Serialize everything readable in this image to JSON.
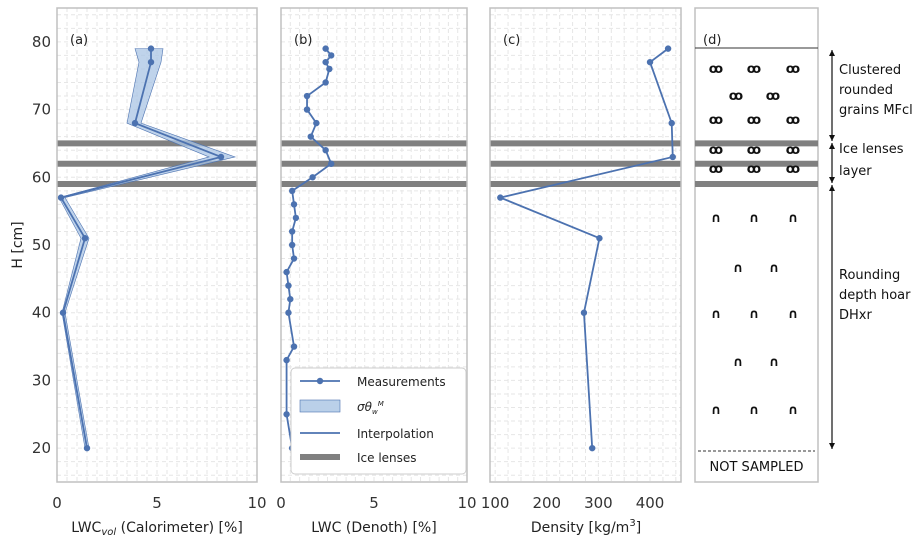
{
  "chart_data": [
    {
      "panel": "(a)",
      "type": "line",
      "xlabel_parts": [
        "LWC",
        "vol",
        " (Calorimeter) [%]"
      ],
      "ylabel": "H [cm]",
      "xlim": [
        0,
        10
      ],
      "ylim": [
        15,
        85
      ],
      "xticks": [
        "0",
        "5",
        "10"
      ],
      "yticks": [
        "20",
        "30",
        "40",
        "50",
        "60",
        "70",
        "80"
      ],
      "ytick_values": [
        20,
        30,
        40,
        50,
        60,
        70,
        80
      ],
      "xtick_values": [
        0,
        5,
        10
      ],
      "grid": true,
      "measurements": [
        [
          4.7,
          79
        ],
        [
          4.7,
          77
        ],
        [
          3.9,
          68
        ],
        [
          8.2,
          63
        ],
        [
          0.2,
          57
        ],
        [
          1.4,
          51
        ],
        [
          0.3,
          40
        ],
        [
          1.5,
          20
        ]
      ],
      "sigma_band": [
        [
          3.9,
          79,
          5.3
        ],
        [
          4.1,
          77,
          5.2
        ],
        [
          3.5,
          68,
          4.2
        ],
        [
          7.6,
          63,
          8.9
        ],
        [
          0.1,
          57,
          0.4
        ],
        [
          1.2,
          51,
          1.6
        ],
        [
          0.25,
          40,
          0.4
        ],
        [
          1.4,
          20,
          1.6
        ]
      ],
      "ice_lenses": [
        65,
        62,
        59
      ]
    },
    {
      "panel": "(b)",
      "type": "line",
      "xlabel": "LWC (Denoth) [%]",
      "xlim": [
        0,
        10
      ],
      "ylim": [
        15,
        85
      ],
      "xticks": [
        "0",
        "5",
        "10"
      ],
      "xtick_values": [
        0,
        5,
        10
      ],
      "grid": true,
      "measurements": [
        [
          2.4,
          79
        ],
        [
          2.7,
          78
        ],
        [
          2.4,
          77
        ],
        [
          2.6,
          76
        ],
        [
          2.4,
          74
        ],
        [
          1.4,
          72
        ],
        [
          1.4,
          70
        ],
        [
          1.9,
          68
        ],
        [
          1.6,
          66
        ],
        [
          2.4,
          64
        ],
        [
          2.7,
          62
        ],
        [
          1.7,
          60
        ],
        [
          0.6,
          58
        ],
        [
          0.7,
          56
        ],
        [
          0.8,
          54
        ],
        [
          0.6,
          52
        ],
        [
          0.6,
          50
        ],
        [
          0.7,
          48
        ],
        [
          0.3,
          46
        ],
        [
          0.4,
          44
        ],
        [
          0.5,
          42
        ],
        [
          0.4,
          40
        ],
        [
          0.7,
          35
        ],
        [
          0.3,
          33
        ],
        [
          0.3,
          25
        ],
        [
          0.6,
          20
        ]
      ],
      "ice_lenses": [
        65,
        62,
        59
      ],
      "legend": {
        "placement": "lower-right",
        "entries": [
          "Measurements",
          "σθ",
          "Interpolation",
          "Ice lenses"
        ],
        "sigma_sub": "w",
        "sigma_sup": "M"
      }
    },
    {
      "panel": "(c)",
      "type": "line",
      "xlabel": "Density [kg/m",
      "xlabel_sup": "3",
      "xlabel_end": "]",
      "xlim": [
        90,
        460
      ],
      "ylim": [
        15,
        85
      ],
      "xticks": [
        "100",
        "200",
        "300",
        "400"
      ],
      "xtick_values": [
        100,
        200,
        300,
        400
      ],
      "grid": true,
      "measurements": [
        [
          435,
          79
        ],
        [
          400,
          77
        ],
        [
          442,
          68
        ],
        [
          444,
          63
        ],
        [
          110,
          57
        ],
        [
          302,
          51
        ],
        [
          272,
          40
        ],
        [
          288,
          20
        ]
      ],
      "ice_lenses": [
        65,
        62,
        59
      ]
    },
    {
      "panel": "(d)",
      "type": "diagram",
      "layers": [
        {
          "label_lines": [
            "Clustered",
            "rounded",
            "grains MFcl"
          ],
          "from": 89,
          "to": 65
        },
        {
          "label_lines": [
            "Ice lenses",
            "layer"
          ],
          "from": 65,
          "to": 59
        },
        {
          "label_lines": [
            "Rounding",
            "depth hoar",
            "DHxr"
          ],
          "from": 59,
          "to": 20
        }
      ],
      "footer": "NOT SAMPLED",
      "ice_lenses": [
        65,
        62,
        59
      ]
    }
  ],
  "colors": {
    "line": "#4c72b0",
    "band": "#a9c4e4",
    "ice": "#808080",
    "grid": "#e6e6e6",
    "frame": "#c0c0c0"
  },
  "symbols": {
    "cluster": "ꝏ",
    "hoar": "∩"
  }
}
